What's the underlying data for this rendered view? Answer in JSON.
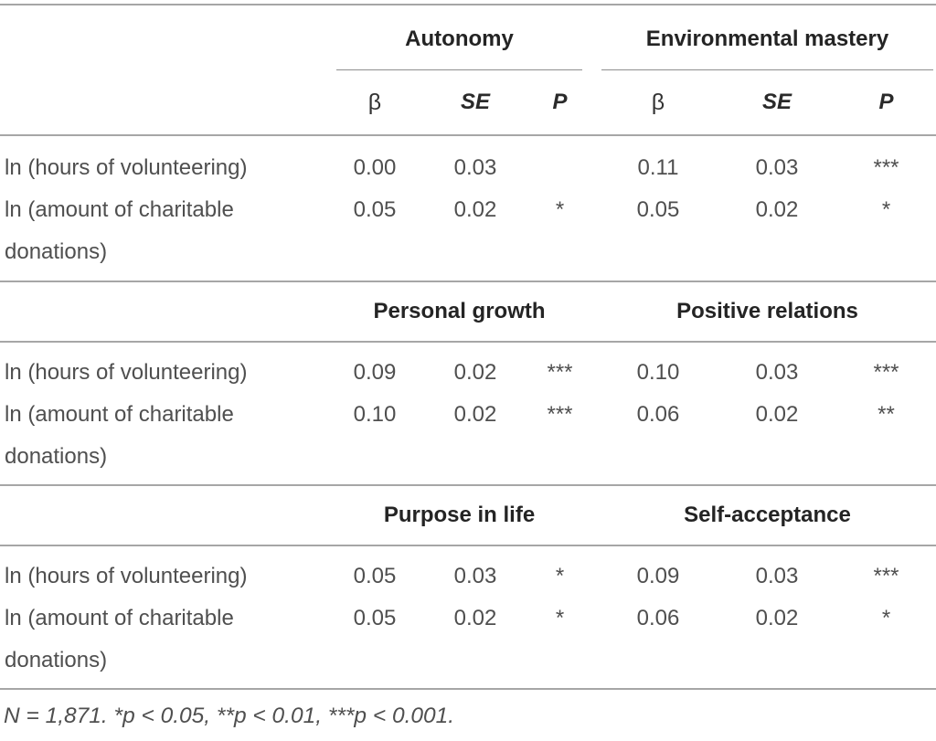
{
  "table": {
    "subheader": {
      "beta": "β",
      "se": "SE",
      "p": "P"
    },
    "sections": [
      {
        "group_left": "Autonomy",
        "group_right": "Environmental mastery",
        "rows": [
          {
            "label": "ln (hours of volunteering)",
            "v": [
              "0.00",
              "0.03",
              "",
              "0.11",
              "0.03",
              "***"
            ]
          },
          {
            "label": "ln (amount of charitable donations)",
            "v": [
              "0.05",
              "0.02",
              "*",
              "0.05",
              "0.02",
              "*"
            ]
          }
        ]
      },
      {
        "group_left": "Personal growth",
        "group_right": "Positive relations",
        "rows": [
          {
            "label": "ln (hours of volunteering)",
            "v": [
              "0.09",
              "0.02",
              "***",
              "0.10",
              "0.03",
              "***"
            ]
          },
          {
            "label": "ln (amount of charitable donations)",
            "v": [
              "0.10",
              "0.02",
              "***",
              "0.06",
              "0.02",
              "**"
            ]
          }
        ]
      },
      {
        "group_left": "Purpose in life",
        "group_right": "Self-acceptance",
        "rows": [
          {
            "label": "ln (hours of volunteering)",
            "v": [
              "0.05",
              "0.03",
              "*",
              "0.09",
              "0.03",
              "***"
            ]
          },
          {
            "label": "ln (amount of charitable donations)",
            "v": [
              "0.05",
              "0.02",
              "*",
              "0.06",
              "0.02",
              "*"
            ]
          }
        ]
      }
    ],
    "footnote": "N = 1,871. *p < 0.05, **p < 0.01, ***p < 0.001."
  }
}
